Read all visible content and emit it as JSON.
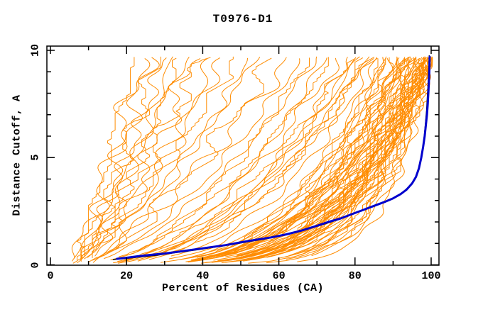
{
  "figure": {
    "title": "T0976-D1",
    "x_axis_title": "Percent of Residues (CA)",
    "y_axis_title": "Distance Cutoff, A"
  },
  "chart_data": {
    "type": "line",
    "title": "T0976-D1",
    "xlabel": "Percent of Residues (CA)",
    "ylabel": "Distance Cutoff, A",
    "xlim": [
      0,
      100
    ],
    "ylim": [
      0,
      10
    ],
    "x_major_ticks": [
      0,
      20,
      40,
      60,
      80,
      100
    ],
    "x_minor_tick_step": 10,
    "y_major_ticks": [
      0,
      5,
      10
    ],
    "y_minor_tick_step": 1,
    "grid": false,
    "legend": false,
    "frame": "box-with-mirrored-inward-ticks",
    "colors": {
      "ensemble": "#FF8C00",
      "highlight": "#0000CD",
      "reference": "#000000"
    },
    "series": [
      {
        "name": "ensemble-models-orange",
        "color": "#FF8C00",
        "style": "thin-wiggly-cumulative-curves",
        "curve_params_note": "each curve = [percent at cutoff 0, percent at cutoff 10, concavity exponent]; x(y)=b+(t-b)*(y/9.7)^a",
        "curves": [
          [
            6,
            22,
            0.85
          ],
          [
            5,
            24,
            0.8
          ],
          [
            8,
            26,
            0.9
          ],
          [
            5,
            28,
            0.75
          ],
          [
            7,
            30,
            0.85
          ],
          [
            6,
            32,
            0.7
          ],
          [
            9,
            34,
            0.8
          ],
          [
            5,
            36,
            0.9
          ],
          [
            8,
            38,
            0.75
          ],
          [
            6,
            40,
            0.8
          ],
          [
            10,
            43,
            0.7
          ],
          [
            7,
            46,
            0.85
          ],
          [
            5,
            49,
            0.75
          ],
          [
            9,
            52,
            0.7
          ],
          [
            6,
            55,
            0.8
          ],
          [
            8,
            59,
            0.7
          ],
          [
            7,
            63,
            0.75
          ],
          [
            5,
            66,
            0.6
          ],
          [
            9,
            68,
            0.55
          ],
          [
            6,
            70,
            0.6
          ],
          [
            11,
            72,
            0.5
          ],
          [
            7,
            74,
            0.55
          ],
          [
            5,
            76,
            0.5
          ],
          [
            10,
            78,
            0.45
          ],
          [
            8,
            79,
            0.5
          ],
          [
            6,
            80,
            0.45
          ],
          [
            12,
            81,
            0.5
          ],
          [
            9,
            82,
            0.4
          ],
          [
            7,
            83,
            0.45
          ],
          [
            5,
            84,
            0.4
          ],
          [
            13,
            84,
            0.5
          ],
          [
            5,
            85,
            0.35
          ],
          [
            8,
            86,
            0.3
          ],
          [
            11,
            87,
            0.32
          ],
          [
            6,
            88,
            0.28
          ],
          [
            14,
            88,
            0.3
          ],
          [
            9,
            89,
            0.25
          ],
          [
            5,
            89,
            0.33
          ],
          [
            12,
            90,
            0.27
          ],
          [
            7,
            90,
            0.3
          ],
          [
            16,
            91,
            0.24
          ],
          [
            10,
            91,
            0.28
          ],
          [
            5,
            92,
            0.26
          ],
          [
            13,
            92,
            0.3
          ],
          [
            8,
            92,
            0.22
          ],
          [
            6,
            93,
            0.28
          ],
          [
            15,
            93,
            0.24
          ],
          [
            9,
            93,
            0.3
          ],
          [
            11,
            94,
            0.2
          ],
          [
            5,
            94,
            0.26
          ],
          [
            7,
            94,
            0.32
          ],
          [
            17,
            95,
            0.22
          ],
          [
            10,
            95,
            0.28
          ],
          [
            6,
            95,
            0.18
          ],
          [
            12,
            95,
            0.25
          ],
          [
            8,
            96,
            0.3
          ],
          [
            5,
            96,
            0.2
          ],
          [
            14,
            96,
            0.24
          ],
          [
            9,
            96,
            0.28
          ],
          [
            11,
            97,
            0.16
          ],
          [
            6,
            97,
            0.22
          ],
          [
            16,
            97,
            0.26
          ],
          [
            7,
            97,
            0.3
          ],
          [
            10,
            97,
            0.19
          ],
          [
            5,
            98,
            0.24
          ],
          [
            13,
            98,
            0.17
          ],
          [
            8,
            98,
            0.28
          ],
          [
            6,
            98,
            0.21
          ],
          [
            15,
            98,
            0.25
          ],
          [
            9,
            98,
            0.15
          ],
          [
            12,
            99,
            0.22
          ],
          [
            5,
            99,
            0.27
          ],
          [
            7,
            99,
            0.18
          ],
          [
            17,
            99,
            0.24
          ],
          [
            10,
            99,
            0.14
          ],
          [
            6,
            99,
            0.3
          ],
          [
            11,
            99,
            0.2
          ],
          [
            8,
            99,
            0.25
          ],
          [
            14,
            100,
            0.16
          ],
          [
            5,
            100,
            0.22
          ],
          [
            9,
            100,
            0.19
          ],
          [
            12,
            100,
            0.26
          ],
          [
            6,
            100,
            0.13
          ],
          [
            16,
            100,
            0.24
          ],
          [
            7,
            100,
            0.2
          ],
          [
            10,
            100,
            0.17
          ],
          [
            13,
            100,
            0.28
          ],
          [
            5,
            100,
            0.15
          ],
          [
            8,
            100,
            0.23
          ],
          [
            11,
            100,
            0.12
          ],
          [
            6,
            100,
            0.26
          ],
          [
            9,
            100,
            0.21
          ]
        ]
      },
      {
        "name": "reference-model-black",
        "color": "#000000",
        "style": "thin",
        "points": [
          [
            16.5,
            0.25
          ],
          [
            20,
            0.3
          ],
          [
            24,
            0.38
          ],
          [
            28,
            0.45
          ],
          [
            32,
            0.55
          ],
          [
            36,
            0.64
          ],
          [
            40,
            0.74
          ],
          [
            44,
            0.85
          ],
          [
            48,
            0.96
          ],
          [
            52,
            1.08
          ],
          [
            56,
            1.2
          ],
          [
            60,
            1.33
          ],
          [
            64,
            1.5
          ],
          [
            68,
            1.7
          ],
          [
            71,
            1.85
          ],
          [
            74,
            2.02
          ],
          [
            77,
            2.2
          ],
          [
            80,
            2.4
          ],
          [
            83,
            2.6
          ],
          [
            86,
            2.8
          ],
          [
            89,
            3.0
          ],
          [
            91,
            3.2
          ],
          [
            93,
            3.45
          ],
          [
            94.5,
            3.7
          ],
          [
            95.5,
            3.95
          ],
          [
            96.5,
            4.3
          ],
          [
            97.2,
            4.8
          ],
          [
            97.8,
            5.4
          ],
          [
            98.2,
            6.0
          ],
          [
            98.5,
            6.6
          ],
          [
            98.8,
            7.2
          ],
          [
            99.0,
            7.8
          ],
          [
            99.2,
            8.4
          ],
          [
            99.35,
            9.0
          ],
          [
            99.45,
            9.5
          ],
          [
            99.5,
            9.75
          ]
        ]
      },
      {
        "name": "highlighted-model-blue",
        "color": "#0000CD",
        "style": "thick",
        "points": [
          [
            17.5,
            0.28
          ],
          [
            20,
            0.33
          ],
          [
            23,
            0.4
          ],
          [
            26,
            0.46
          ],
          [
            30,
            0.53
          ],
          [
            34,
            0.62
          ],
          [
            38,
            0.72
          ],
          [
            42,
            0.82
          ],
          [
            46,
            0.92
          ],
          [
            50,
            1.05
          ],
          [
            54,
            1.17
          ],
          [
            58,
            1.28
          ],
          [
            62,
            1.42
          ],
          [
            66,
            1.6
          ],
          [
            70,
            1.82
          ],
          [
            73,
            2.0
          ],
          [
            76,
            2.15
          ],
          [
            79,
            2.35
          ],
          [
            82,
            2.55
          ],
          [
            85,
            2.75
          ],
          [
            88,
            2.95
          ],
          [
            90,
            3.1
          ],
          [
            92,
            3.3
          ],
          [
            93.5,
            3.5
          ],
          [
            95,
            3.8
          ],
          [
            96,
            4.1
          ],
          [
            96.8,
            4.5
          ],
          [
            97.4,
            5.0
          ],
          [
            97.9,
            5.5
          ],
          [
            98.3,
            6.0
          ],
          [
            98.6,
            6.5
          ],
          [
            98.9,
            7.0
          ],
          [
            99.1,
            7.5
          ],
          [
            99.3,
            8.1
          ],
          [
            99.45,
            8.7
          ],
          [
            99.55,
            9.2
          ],
          [
            99.6,
            9.7
          ]
        ]
      }
    ]
  }
}
